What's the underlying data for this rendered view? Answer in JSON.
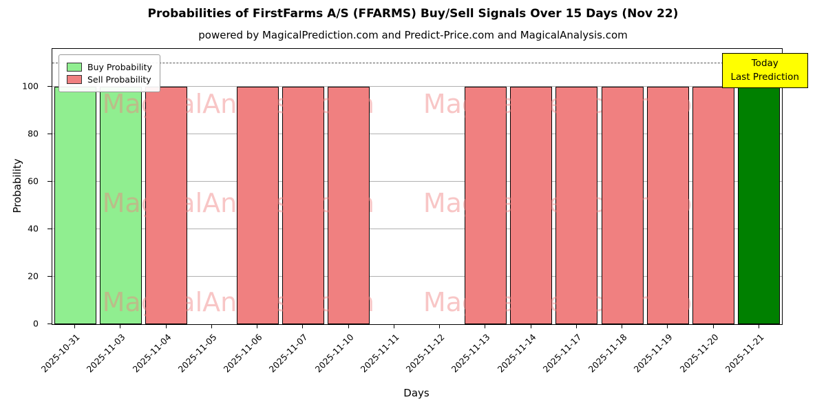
{
  "title": "Probabilities of FirstFarms A/S (FFARMS) Buy/Sell Signals Over 15 Days (Nov 22)",
  "subtitle": "powered by MagicalPrediction.com and Predict-Price.com and MagicalAnalysis.com",
  "legend": {
    "items": [
      {
        "label": "Buy Probability",
        "color": "#90ee90"
      },
      {
        "label": "Sell Probability",
        "color": "#f08080"
      }
    ]
  },
  "annotation": {
    "line1": "Today",
    "line2": "Last Prediction",
    "bg": "#ffff00"
  },
  "watermarks": {
    "left": "MagicalAnalysis.com",
    "right": "MagicalPrediction.com"
  },
  "chart_data": {
    "type": "bar",
    "title": "Probabilities of FirstFarms A/S (FFARMS) Buy/Sell Signals Over 15 Days (Nov 22)",
    "xlabel": "Days",
    "ylabel": "Probability",
    "ylim": [
      0,
      116
    ],
    "yticks": [
      0,
      20,
      40,
      60,
      80,
      100
    ],
    "dashed_line_y": 110,
    "grid": "horizontal",
    "legend_position": "upper left",
    "bar_width_fraction": 0.92,
    "categories": [
      "2025-10-31",
      "2025-11-03",
      "2025-11-04",
      "2025-11-05",
      "2025-11-06",
      "2025-11-07",
      "2025-11-10",
      "2025-11-11",
      "2025-11-12",
      "2025-11-13",
      "2025-11-14",
      "2025-11-17",
      "2025-11-18",
      "2025-11-19",
      "2025-11-20",
      "2025-11-21"
    ],
    "series": [
      {
        "name": "Buy Probability",
        "color": "#90ee90",
        "values": [
          100,
          100,
          0,
          0,
          0,
          0,
          0,
          0,
          0,
          0,
          0,
          0,
          0,
          0,
          0,
          0
        ]
      },
      {
        "name": "Sell Probability",
        "color": "#f08080",
        "values": [
          0,
          0,
          100,
          0,
          100,
          100,
          100,
          0,
          0,
          100,
          100,
          100,
          100,
          100,
          100,
          0
        ]
      },
      {
        "name": "Last Prediction (Today)",
        "color": "#008000",
        "values": [
          0,
          0,
          0,
          0,
          0,
          0,
          0,
          0,
          0,
          0,
          0,
          0,
          0,
          0,
          0,
          100
        ]
      }
    ]
  }
}
